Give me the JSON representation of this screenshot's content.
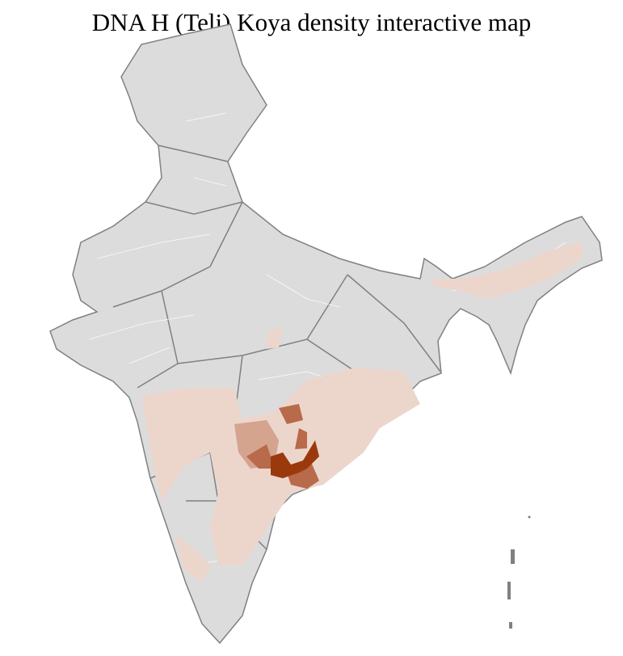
{
  "title": "DNA H (Teli) Koya density interactive map",
  "colors": {
    "background_land": "#dcdcdc",
    "district_border": "#ffffff",
    "state_border": "#808080",
    "density_low": "#ecd6cc",
    "density_medium_low": "#d4a48f",
    "density_medium": "#b86a4a",
    "density_high": "#9a3a0c"
  }
}
